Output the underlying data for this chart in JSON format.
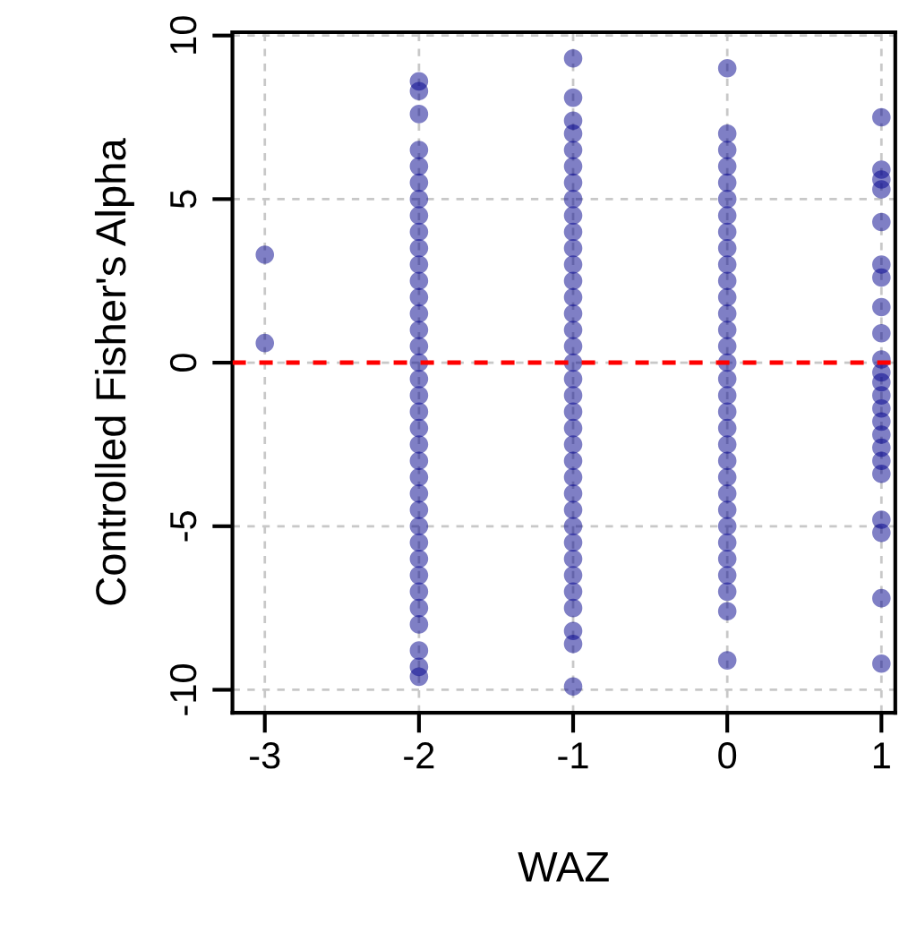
{
  "chart_data": {
    "type": "scatter",
    "xlabel": "WAZ",
    "ylabel": "Controlled Fisher's Alpha",
    "xlim": [
      -3.21,
      1.09
    ],
    "ylim": [
      -10.7,
      10.1
    ],
    "xticks": [
      -3,
      -2,
      -1,
      0,
      1
    ],
    "yticks": [
      -10,
      -5,
      0,
      5,
      10
    ],
    "grid": true,
    "marker": "circle",
    "ref_lines": [
      {
        "axis": "y",
        "value": 0,
        "color": "#ff0000",
        "line_style": "dashed"
      }
    ],
    "series": [
      {
        "color": "#00008b",
        "x": [
          -3,
          -3
        ],
        "values": [
          3.3,
          0.6
        ]
      },
      {
        "color": "#00008b",
        "x": [
          -2,
          -2,
          -2,
          -2,
          -2,
          -2,
          -2,
          -2,
          -2,
          -2,
          -2,
          -2,
          -2,
          -2,
          -2,
          -2,
          -2,
          -2,
          -2,
          -2,
          -2,
          -2,
          -2,
          -2,
          -2,
          -2,
          -2,
          -2,
          -2,
          -2,
          -2,
          -2,
          -2,
          -2,
          -2,
          -2
        ],
        "values": [
          8.6,
          8.3,
          7.6,
          6.5,
          6,
          5.5,
          5,
          4.5,
          4,
          3.5,
          3,
          2.5,
          2,
          1.5,
          1,
          0.5,
          0,
          -0.5,
          -1,
          -1.5,
          -2,
          -2.5,
          -3,
          -3.5,
          -4,
          -4.5,
          -5,
          -5.5,
          -6,
          -6.5,
          -7.0,
          -7.5,
          -8.0,
          -8.8,
          -9.3,
          -9.6
        ]
      },
      {
        "color": "#00008b",
        "x": [
          -1,
          -1,
          -1,
          -1,
          -1,
          -1,
          -1,
          -1,
          -1,
          -1,
          -1,
          -1,
          -1,
          -1,
          -1,
          -1,
          -1,
          -1,
          -1,
          -1,
          -1,
          -1,
          -1,
          -1,
          -1,
          -1,
          -1,
          -1,
          -1,
          -1,
          -1,
          -1,
          -1,
          -1,
          -1,
          -1
        ],
        "values": [
          9.3,
          8.1,
          7.4,
          7.0,
          6.5,
          6,
          5.5,
          5,
          4.5,
          4,
          3.5,
          3,
          2.5,
          2,
          1.5,
          1,
          0.5,
          0,
          -0.5,
          -1,
          -1.5,
          -2,
          -2.5,
          -3,
          -3.5,
          -4,
          -4.5,
          -5,
          -5.5,
          -6,
          -6.5,
          -7.0,
          -7.5,
          -8.2,
          -8.6,
          -9.9
        ]
      },
      {
        "color": "#00008b",
        "x": [
          0,
          0,
          0,
          0,
          0,
          0,
          0,
          0,
          0,
          0,
          0,
          0,
          0,
          0,
          0,
          0,
          0,
          0,
          0,
          0,
          0,
          0,
          0,
          0,
          0,
          0,
          0,
          0,
          0,
          0,
          0,
          0
        ],
        "values": [
          9.0,
          7.0,
          6.5,
          6,
          5.5,
          5,
          4.5,
          4,
          3.5,
          3,
          2.5,
          2,
          1.5,
          1,
          0.5,
          0,
          -0.5,
          -1,
          -1.5,
          -2,
          -2.5,
          -3,
          -3.5,
          -4,
          -4.5,
          -5,
          -5.5,
          -6,
          -6.5,
          -7.0,
          -7.6,
          -9.1
        ]
      },
      {
        "color": "#00008b",
        "x": [
          1,
          1,
          1,
          1,
          1,
          1,
          1,
          1,
          1,
          1,
          1,
          1,
          1,
          1,
          1,
          1,
          1,
          1,
          1,
          1,
          1,
          1,
          1
        ],
        "values": [
          7.5,
          5.9,
          5.6,
          5.3,
          4.3,
          3.0,
          2.6,
          1.7,
          0.9,
          0.1,
          -0.3,
          -0.6,
          -1.0,
          -1.4,
          -1.8,
          -2.2,
          -2.6,
          -3.0,
          -3.4,
          -4.8,
          -5.2,
          -7.2,
          -9.2
        ]
      }
    ]
  }
}
